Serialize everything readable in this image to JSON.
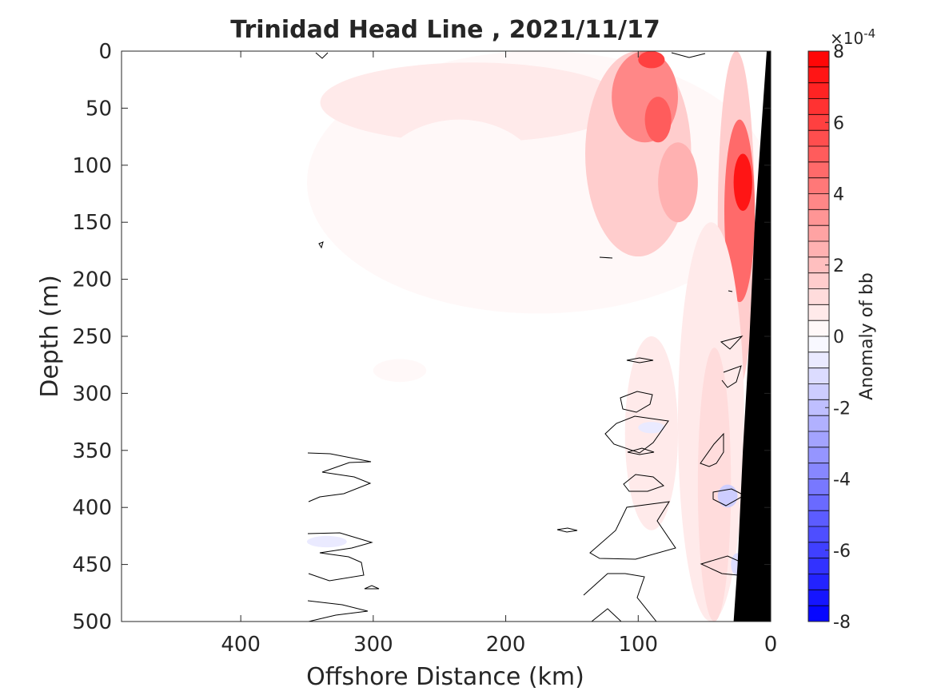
{
  "chart_data": {
    "type": "heatmap",
    "title": "Trinidad Head Line , 2021/11/17",
    "xlabel": "Offshore Distance (km)",
    "ylabel": "Depth (m)",
    "xlim": [
      490,
      0
    ],
    "ylim": [
      0,
      500
    ],
    "x_ticks": [
      400,
      300,
      200,
      100,
      0
    ],
    "y_ticks": [
      0,
      50,
      100,
      150,
      200,
      250,
      300,
      350,
      400,
      450,
      500
    ],
    "x_reversed": true,
    "y_reversed": true,
    "grid": false,
    "colorbar": {
      "label": "Anomaly of bb",
      "exponent_label": "×10",
      "exponent_power": "-4",
      "multiplier": "1e-4",
      "range": [
        -8,
        8
      ],
      "ticks": [
        -8,
        -6,
        -4,
        -2,
        0,
        2,
        4,
        6,
        8
      ],
      "levels": 36,
      "colors": {
        "negative": "#0000ff",
        "zero": "#ffffff",
        "positive": "#ff0000"
      }
    },
    "data_extent_km": [
      350,
      0
    ],
    "bathymetry": {
      "color": "#000000",
      "boundary": [
        [
          3,
          0
        ],
        [
          12,
          150
        ],
        [
          16,
          250
        ],
        [
          21,
          350
        ],
        [
          25,
          450
        ],
        [
          28,
          500
        ]
      ]
    },
    "anomaly_patches": [
      {
        "x": [
          350,
          0
        ],
        "y": [
          0,
          230
        ],
        "value": 0.35
      },
      {
        "x": [
          340,
          110
        ],
        "y": [
          10,
          80
        ],
        "value": 0.7
      },
      {
        "x": [
          300,
          170
        ],
        "y": [
          60,
          180
        ],
        "value": 0.4
      },
      {
        "x": [
          140,
          60
        ],
        "y": [
          0,
          180
        ],
        "value": 1.6
      },
      {
        "x": [
          120,
          70
        ],
        "y": [
          0,
          80
        ],
        "value": 3.8
      },
      {
        "x": [
          100,
          80
        ],
        "y": [
          0,
          15
        ],
        "value": 6.0
      },
      {
        "x": [
          95,
          75
        ],
        "y": [
          40,
          80
        ],
        "value": 5.0
      },
      {
        "x": [
          85,
          55
        ],
        "y": [
          80,
          150
        ],
        "value": 2.4
      },
      {
        "x": [
          40,
          12
        ],
        "y": [
          0,
          300
        ],
        "value": 1.5
      },
      {
        "x": [
          35,
          12
        ],
        "y": [
          60,
          220
        ],
        "value": 4.8
      },
      {
        "x": [
          28,
          14
        ],
        "y": [
          90,
          140
        ],
        "value": 7.2
      },
      {
        "x": [
          70,
          20
        ],
        "y": [
          150,
          500
        ],
        "value": 0.8
      },
      {
        "x": [
          55,
          30
        ],
        "y": [
          260,
          500
        ],
        "value": 1.2
      },
      {
        "x": [
          110,
          70
        ],
        "y": [
          250,
          420
        ],
        "value": 0.5
      },
      {
        "x": [
          300,
          260
        ],
        "y": [
          270,
          290
        ],
        "value": 0.3
      },
      {
        "x": [
          40,
          25
        ],
        "y": [
          380,
          400
        ],
        "value": -1.6
      },
      {
        "x": [
          30,
          20
        ],
        "y": [
          440,
          460
        ],
        "value": -1.2
      },
      {
        "x": [
          350,
          320
        ],
        "y": [
          425,
          435
        ],
        "value": -0.6
      },
      {
        "x": [
          100,
          80
        ],
        "y": [
          325,
          335
        ],
        "value": -0.5
      }
    ]
  }
}
